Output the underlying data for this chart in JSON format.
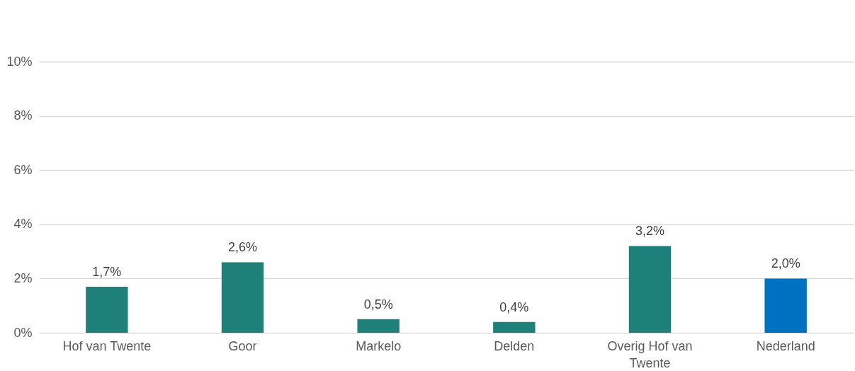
{
  "chart_data": {
    "type": "bar",
    "categories": [
      "Hof van Twente",
      "Goor",
      "Markelo",
      "Delden",
      "Overig Hof van Twente",
      "Nederland"
    ],
    "values": [
      1.7,
      2.6,
      0.5,
      0.4,
      3.2,
      2.0
    ],
    "colors": [
      "#1f7f79",
      "#1f7f79",
      "#1f7f79",
      "#1f7f79",
      "#1f7f79",
      "#0070c0"
    ],
    "value_labels": [
      "1,7%",
      "2,6%",
      "0,5%",
      "0,4%",
      "3,2%",
      "2,0%"
    ],
    "ylim": [
      0,
      10
    ],
    "yticks": [
      {
        "value": 0,
        "label": "0%"
      },
      {
        "value": 2,
        "label": "2%"
      },
      {
        "value": 4,
        "label": "4%"
      },
      {
        "value": 6,
        "label": "6%"
      },
      {
        "value": 8,
        "label": "8%"
      },
      {
        "value": 10,
        "label": "10%"
      }
    ],
    "grid": "y"
  }
}
